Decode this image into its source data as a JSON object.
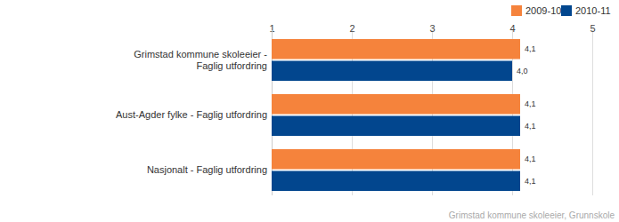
{
  "chart_data": {
    "type": "bar",
    "orientation": "horizontal",
    "categories": [
      "Grimstad kommune skoleeier - Faglig utfordring",
      "Aust-Agder fylke - Faglig utfordring",
      "Nasjonalt - Faglig utfordring"
    ],
    "series": [
      {
        "name": "2009-10",
        "color": "#f5833c",
        "values": [
          4.1,
          4.1,
          4.1
        ],
        "value_labels": [
          "4,1",
          "4,1",
          "4,1"
        ]
      },
      {
        "name": "2010-11",
        "color": "#02468e",
        "values": [
          4.0,
          4.1,
          4.1
        ],
        "value_labels": [
          "4,0",
          "4,1",
          "4,1"
        ]
      }
    ],
    "xlim": [
      1,
      5
    ],
    "xticks": [
      1,
      2,
      3,
      4,
      5
    ],
    "grid": true,
    "data_labels": true,
    "legend": "top-right",
    "annotations": [
      "Grimstad kommune skoleeier, Grunnskole"
    ]
  }
}
